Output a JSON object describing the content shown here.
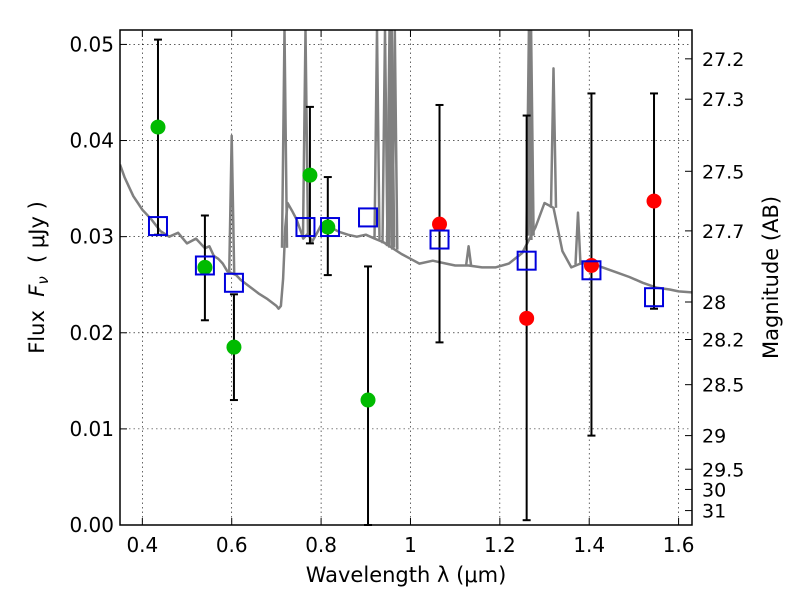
{
  "chart_data": {
    "type": "scatter",
    "xlabel": "Wavelength  λ (μm)",
    "ylabel_parts": [
      "Flux  ",
      "F",
      "ν",
      "  ( μJy )"
    ],
    "y2label": "Magnitude (AB)",
    "xlim": [
      0.35,
      1.63
    ],
    "ylim": [
      0.0,
      0.0515
    ],
    "grid": true,
    "x_ticks": [
      0.4,
      0.6,
      0.8,
      1.0,
      1.2,
      1.4,
      1.6
    ],
    "x_tick_labels": [
      "0.4",
      "0.6",
      "0.8",
      "1",
      "1.2",
      "1.4",
      "1.6"
    ],
    "y_ticks": [
      0.0,
      0.01,
      0.02,
      0.03,
      0.04,
      0.05
    ],
    "y_tick_labels": [
      "0.00",
      "0.01",
      "0.02",
      "0.03",
      "0.04",
      "0.05"
    ],
    "y2_ticks": [
      {
        "label": "27.2",
        "flux": 0.0485
      },
      {
        "label": "27.3",
        "flux": 0.0443
      },
      {
        "label": "27.5",
        "flux": 0.0368
      },
      {
        "label": "27.7",
        "flux": 0.0306
      },
      {
        "label": "28",
        "flux": 0.0232
      },
      {
        "label": "28.2",
        "flux": 0.0193
      },
      {
        "label": "28.5",
        "flux": 0.0146
      },
      {
        "label": "29",
        "flux": 0.0093
      },
      {
        "label": "29.5",
        "flux": 0.0058
      },
      {
        "label": "30",
        "flux": 0.0037
      },
      {
        "label": "31",
        "flux": 0.0015
      }
    ],
    "series": [
      {
        "name": "green measurements",
        "color": "#00bb00",
        "marker": "circle",
        "points": [
          {
            "x": 0.435,
            "y": 0.0414,
            "err": [
              0.0302,
              0.0505
            ]
          },
          {
            "x": 0.54,
            "y": 0.0268,
            "err": [
              0.0213,
              0.0322
            ]
          },
          {
            "x": 0.605,
            "y": 0.0185,
            "err": [
              0.013,
              0.024
            ]
          },
          {
            "x": 0.775,
            "y": 0.0364,
            "err": [
              0.0293,
              0.0435
            ]
          },
          {
            "x": 0.815,
            "y": 0.031,
            "err": [
              0.026,
              0.0362
            ]
          },
          {
            "x": 0.905,
            "y": 0.013,
            "err": [
              0.0,
              0.0269
            ]
          }
        ]
      },
      {
        "name": "red measurements",
        "color": "#ff0000",
        "marker": "circle",
        "points": [
          {
            "x": 1.065,
            "y": 0.0313,
            "err": [
              0.019,
              0.0437
            ]
          },
          {
            "x": 1.26,
            "y": 0.0215,
            "err": [
              0.0005,
              0.0426
            ]
          },
          {
            "x": 1.405,
            "y": 0.027,
            "err": [
              0.0093,
              0.0449
            ]
          },
          {
            "x": 1.545,
            "y": 0.0337,
            "err": [
              0.0225,
              0.0449
            ]
          }
        ]
      },
      {
        "name": "model fluxes",
        "color": "#0000dd",
        "marker": "square",
        "points": [
          {
            "x": 0.435,
            "y": 0.0311
          },
          {
            "x": 0.54,
            "y": 0.027
          },
          {
            "x": 0.605,
            "y": 0.0252
          },
          {
            "x": 0.765,
            "y": 0.031
          },
          {
            "x": 0.82,
            "y": 0.031
          },
          {
            "x": 0.905,
            "y": 0.032
          },
          {
            "x": 1.065,
            "y": 0.0297
          },
          {
            "x": 1.26,
            "y": 0.0275
          },
          {
            "x": 1.405,
            "y": 0.0265
          },
          {
            "x": 1.545,
            "y": 0.0237
          }
        ]
      }
    ],
    "spectrum": {
      "name": "model spectrum",
      "color": "#808080",
      "points": [
        [
          0.35,
          0.0375
        ],
        [
          0.36,
          0.0362
        ],
        [
          0.37,
          0.0352
        ],
        [
          0.38,
          0.0342
        ],
        [
          0.39,
          0.0335
        ],
        [
          0.4,
          0.0328
        ],
        [
          0.42,
          0.0318
        ],
        [
          0.44,
          0.0306
        ],
        [
          0.46,
          0.03
        ],
        [
          0.48,
          0.0304
        ],
        [
          0.5,
          0.0293
        ],
        [
          0.52,
          0.0298
        ],
        [
          0.54,
          0.0288
        ],
        [
          0.55,
          0.029
        ],
        [
          0.56,
          0.028
        ],
        [
          0.57,
          0.0277
        ],
        [
          0.58,
          0.0272
        ],
        [
          0.59,
          0.0264
        ],
        [
          0.6,
          0.0262
        ],
        [
          0.61,
          0.026
        ],
        [
          0.62,
          0.0255
        ],
        [
          0.64,
          0.0248
        ],
        [
          0.66,
          0.0241
        ],
        [
          0.68,
          0.0235
        ],
        [
          0.7,
          0.0228
        ],
        [
          0.705,
          0.0225
        ],
        [
          0.71,
          0.0228
        ],
        [
          0.715,
          0.0256
        ],
        [
          0.72,
          0.031
        ],
        [
          0.725,
          0.0335
        ],
        [
          0.735,
          0.0327
        ],
        [
          0.745,
          0.0318
        ],
        [
          0.755,
          0.0305
        ],
        [
          0.76,
          0.0298
        ],
        [
          0.77,
          0.0303
        ],
        [
          0.78,
          0.0295
        ],
        [
          0.79,
          0.0303
        ],
        [
          0.8,
          0.0312
        ],
        [
          0.82,
          0.031
        ],
        [
          0.84,
          0.0305
        ],
        [
          0.86,
          0.0302
        ],
        [
          0.88,
          0.03
        ],
        [
          0.9,
          0.0302
        ],
        [
          0.92,
          0.0298
        ],
        [
          0.94,
          0.0294
        ],
        [
          0.96,
          0.0288
        ],
        [
          0.98,
          0.0282
        ],
        [
          1.0,
          0.0277
        ],
        [
          1.02,
          0.0272
        ],
        [
          1.05,
          0.0275
        ],
        [
          1.08,
          0.0272
        ],
        [
          1.1,
          0.027
        ],
        [
          1.13,
          0.027
        ],
        [
          1.16,
          0.0268
        ],
        [
          1.19,
          0.0268
        ],
        [
          1.22,
          0.0272
        ],
        [
          1.25,
          0.0283
        ],
        [
          1.28,
          0.031
        ],
        [
          1.3,
          0.0335
        ],
        [
          1.32,
          0.033
        ],
        [
          1.34,
          0.0285
        ],
        [
          1.36,
          0.0268
        ],
        [
          1.38,
          0.0272
        ],
        [
          1.4,
          0.0273
        ],
        [
          1.43,
          0.0268
        ],
        [
          1.46,
          0.0263
        ],
        [
          1.49,
          0.0258
        ],
        [
          1.52,
          0.0252
        ],
        [
          1.55,
          0.0247
        ],
        [
          1.58,
          0.0245
        ],
        [
          1.6,
          0.0243
        ],
        [
          1.63,
          0.0242
        ]
      ],
      "spikes": [
        {
          "x": 0.6,
          "top": 0.0405
        },
        {
          "x": 0.718,
          "top": 0.0515
        },
        {
          "x": 0.765,
          "top": 0.0515
        },
        {
          "x": 0.925,
          "top": 0.0515
        },
        {
          "x": 0.943,
          "top": 0.0515
        },
        {
          "x": 0.953,
          "top": 0.0515
        },
        {
          "x": 0.958,
          "top": 0.0515
        },
        {
          "x": 0.965,
          "top": 0.0515
        },
        {
          "x": 1.13,
          "top": 0.029
        },
        {
          "x": 1.265,
          "top": 0.0515
        },
        {
          "x": 1.27,
          "top": 0.0515
        },
        {
          "x": 1.32,
          "top": 0.0475
        },
        {
          "x": 1.375,
          "top": 0.0325
        }
      ]
    }
  }
}
